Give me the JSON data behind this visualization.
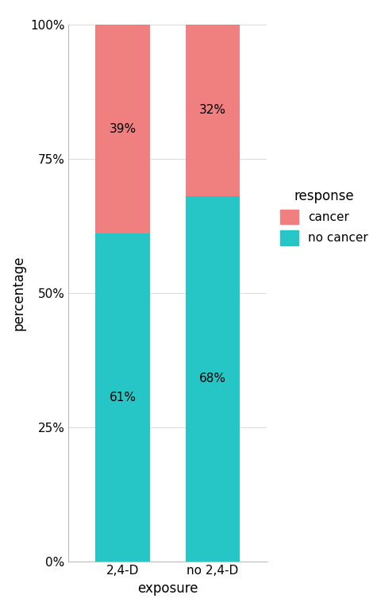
{
  "categories": [
    "2,4-D",
    "no 2,4-D"
  ],
  "no_cancer": [
    0.61,
    0.68
  ],
  "cancer": [
    0.39,
    0.32
  ],
  "no_cancer_labels": [
    "61%",
    "68%"
  ],
  "cancer_labels": [
    "39%",
    "32%"
  ],
  "color_cancer": "#F08080",
  "color_no_cancer": "#26C6C6",
  "xlabel": "exposure",
  "ylabel": "percentage",
  "legend_title": "response",
  "legend_labels": [
    "cancer",
    "no cancer"
  ],
  "yticks": [
    0.0,
    0.25,
    0.5,
    0.75,
    1.0
  ],
  "ytick_labels": [
    "0%",
    "25%",
    "50%",
    "75%",
    "100%"
  ],
  "background_color": "#FFFFFF",
  "grid_color": "#DDDDDD",
  "bar_width": 0.6,
  "label_fontsize": 11,
  "axis_label_fontsize": 12,
  "legend_fontsize": 11,
  "legend_title_fontsize": 12
}
